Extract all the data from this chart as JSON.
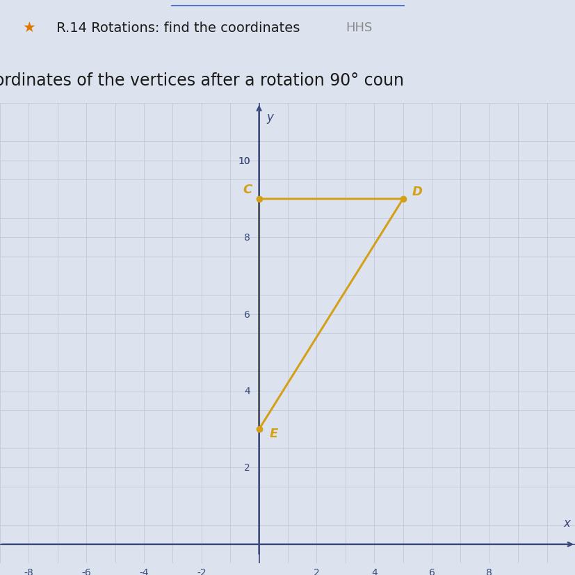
{
  "title_star": "★",
  "title_text": " R.14 Rotations: find the coordinates ",
  "title_hhs": "HHS",
  "subtitle": "ordinates of the vertices after a rotation 90° coun",
  "vertices": {
    "C": [
      0,
      9
    ],
    "D": [
      5,
      9
    ],
    "E": [
      0,
      3
    ]
  },
  "shape_color": "#D4A017",
  "xlim": [
    -9,
    11
  ],
  "ylim": [
    -0.5,
    11.5
  ],
  "xticks": [
    -8,
    -6,
    -4,
    -2,
    2,
    4,
    6,
    8
  ],
  "yticks": [
    2,
    4,
    6,
    8,
    10
  ],
  "grid_color": "#c0c8dc",
  "background_color": "#dce3ee",
  "axis_color": "#3a4a7a",
  "tick_label_color": "#3a4a7a",
  "title_color": "#1a1a1a",
  "title_fontsize": 14,
  "subtitle_fontsize": 17,
  "tick_fontsize": 10,
  "label_fontsize": 13,
  "label_offsets": {
    "C": [
      -0.4,
      0.25
    ],
    "D": [
      0.5,
      0.2
    ],
    "E": [
      0.5,
      -0.1
    ]
  }
}
